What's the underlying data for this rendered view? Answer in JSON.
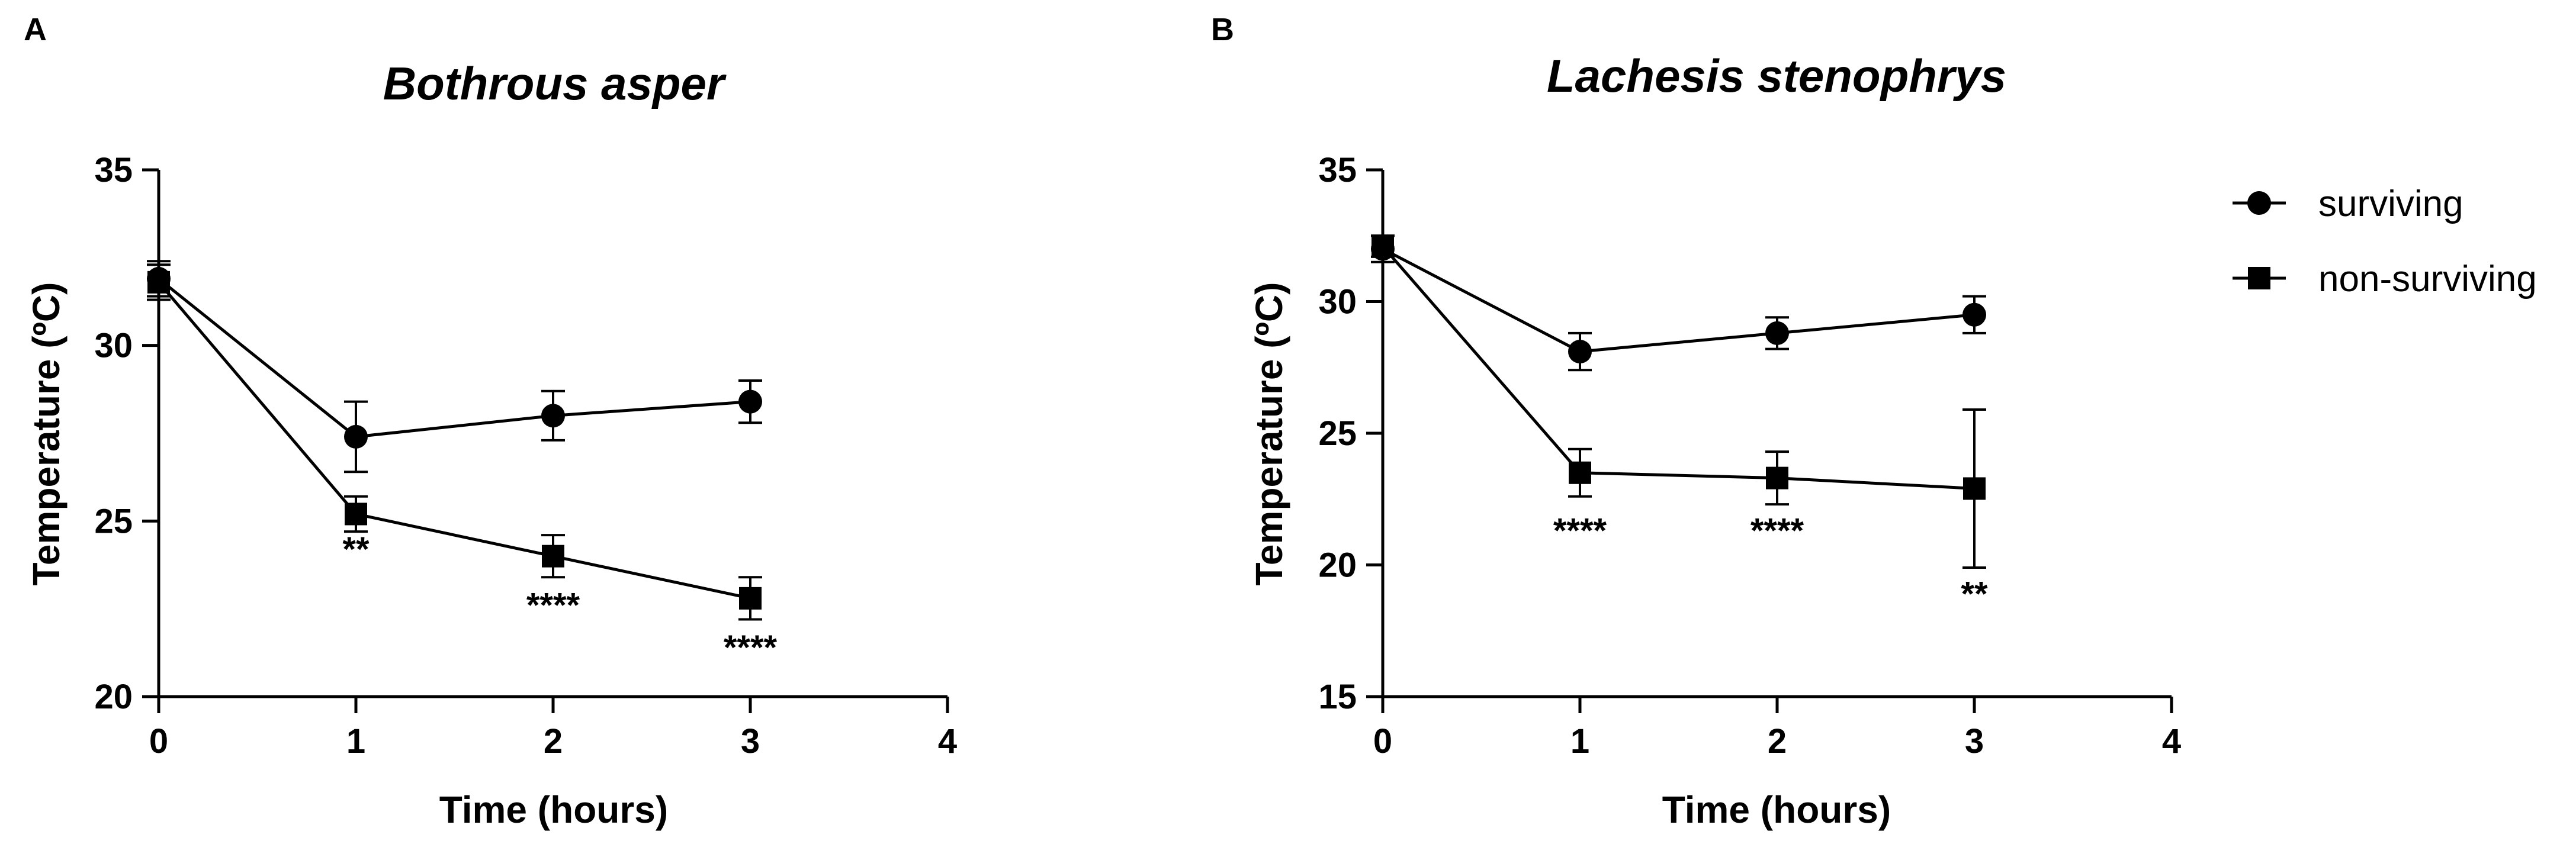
{
  "chart_data": [
    {
      "type": "line",
      "panel_label": "A",
      "title": "Bothrous asper",
      "xlabel": "Time (hours)",
      "ylabel": "Temperature (ºC)",
      "xlim": [
        0,
        4
      ],
      "ylim": [
        20,
        35
      ],
      "xticks": [
        "0",
        "1",
        "2",
        "3",
        "4"
      ],
      "yticks": [
        "20",
        "25",
        "30",
        "35"
      ],
      "series": [
        {
          "name": "surviving",
          "marker": "circle",
          "x": [
            0,
            1,
            2,
            3
          ],
          "y": [
            31.9,
            27.4,
            28.0,
            28.4
          ],
          "err": [
            0.5,
            1.0,
            0.7,
            0.6
          ]
        },
        {
          "name": "non-surviving",
          "marker": "square",
          "x": [
            0,
            1,
            2,
            3
          ],
          "y": [
            31.8,
            25.2,
            24.0,
            22.8
          ],
          "err": [
            0.5,
            0.5,
            0.6,
            0.6
          ]
        }
      ],
      "annotations": [
        {
          "x": 1,
          "y": 24.2,
          "text": "**"
        },
        {
          "x": 2,
          "y": 22.6,
          "text": "****"
        },
        {
          "x": 3,
          "y": 21.4,
          "text": "****"
        }
      ]
    },
    {
      "type": "line",
      "panel_label": "B",
      "title": "Lachesis stenophrys",
      "xlabel": "Time (hours)",
      "ylabel": "Temperature (ºC)",
      "xlim": [
        0,
        4
      ],
      "ylim": [
        15,
        35
      ],
      "xticks": [
        "0",
        "1",
        "2",
        "3",
        "4"
      ],
      "yticks": [
        "15",
        "20",
        "25",
        "30",
        "35"
      ],
      "series": [
        {
          "name": "surviving",
          "marker": "circle",
          "x": [
            0,
            1,
            2,
            3
          ],
          "y": [
            32.0,
            28.1,
            28.8,
            29.5
          ],
          "err": [
            0.5,
            0.7,
            0.6,
            0.7
          ]
        },
        {
          "name": "non-surviving",
          "marker": "square",
          "x": [
            0,
            1,
            2,
            3
          ],
          "y": [
            32.1,
            23.5,
            23.3,
            22.9
          ],
          "err": [
            0.4,
            0.9,
            1.0,
            3.0
          ]
        }
      ],
      "annotations": [
        {
          "x": 1,
          "y": 21.3,
          "text": "****"
        },
        {
          "x": 2,
          "y": 21.3,
          "text": "****"
        },
        {
          "x": 3,
          "y": 18.9,
          "text": "**"
        }
      ]
    }
  ],
  "legend": {
    "placement": "right",
    "items": [
      {
        "label": "surviving",
        "marker": "circle"
      },
      {
        "label": "non-surviving",
        "marker": "square"
      }
    ]
  }
}
